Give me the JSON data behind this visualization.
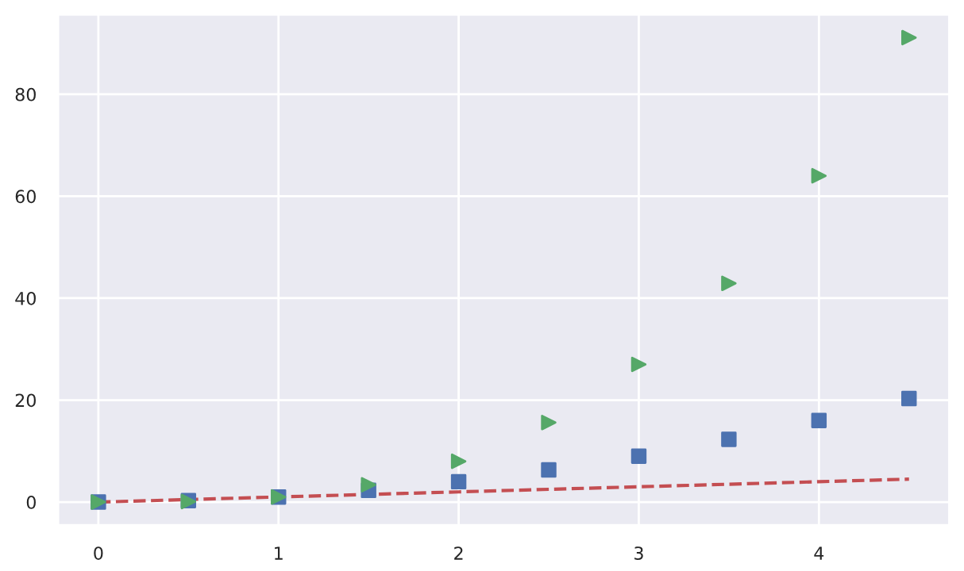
{
  "chart_data": {
    "type": "scatter",
    "x": [
      0,
      0.5,
      1,
      1.5,
      2,
      2.5,
      3,
      3.5,
      4,
      4.5
    ],
    "series": [
      {
        "type": "line",
        "color": "#c44e52",
        "line_style": "dashed",
        "marker": "none",
        "values": [
          0,
          0.5,
          1,
          1.5,
          2,
          2.5,
          3,
          3.5,
          4,
          4.5
        ]
      },
      {
        "color": "#4c72b0",
        "marker": "square",
        "values": [
          0,
          0.3,
          1,
          2.3,
          4,
          6.3,
          9,
          12.3,
          16,
          20.3
        ]
      },
      {
        "color": "#55a868",
        "marker": "triangle",
        "values": [
          0,
          0.1,
          1,
          3.4,
          8,
          15.6,
          27,
          42.9,
          64,
          91.1
        ]
      }
    ],
    "xlim": [
      -0.225,
      4.725
    ],
    "ylim": [
      -4.56,
      95.68
    ],
    "xticks": [
      0,
      1,
      2,
      3,
      4
    ],
    "yticks": [
      0,
      20,
      40,
      60,
      80
    ],
    "grid": true
  }
}
